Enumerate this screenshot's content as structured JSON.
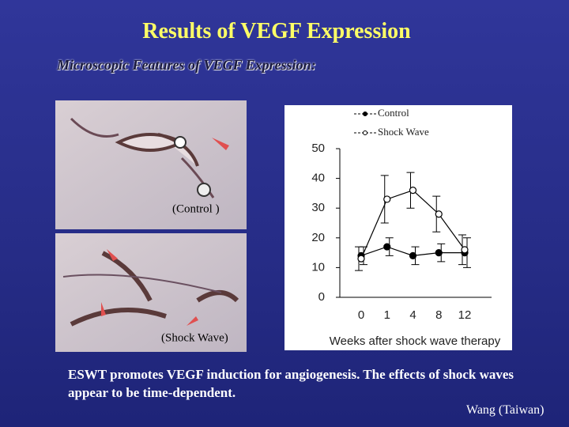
{
  "title": "Results of VEGF Expression",
  "subtitle": "Microscopic Features of VEGF Expression:",
  "images": [
    {
      "label": "(Control )"
    },
    {
      "label": "(Shock Wave)"
    }
  ],
  "chart_data": {
    "type": "line",
    "categories": [
      "0",
      "1",
      "4",
      "8",
      "12"
    ],
    "x_label": "Weeks after shock wave therapy",
    "series": [
      {
        "name": "Control",
        "color": "#000000",
        "marker": "filled",
        "values": [
          14,
          17,
          14,
          15,
          15
        ],
        "errors": [
          3,
          3,
          3,
          3,
          5
        ]
      },
      {
        "name": "Shock Wave",
        "color": "#000000",
        "marker": "open",
        "values": [
          13,
          33,
          36,
          28,
          16
        ],
        "errors": [
          4,
          8,
          6,
          6,
          5
        ]
      }
    ],
    "ylim": [
      0,
      50
    ],
    "yticks": [
      0,
      10,
      20,
      30,
      40,
      50
    ],
    "grid": false
  },
  "caption": "ESWT promotes VEGF induction for angiogenesis. The effects of shock waves appear to be time-dependent.",
  "credit": "Wang (Taiwan)"
}
